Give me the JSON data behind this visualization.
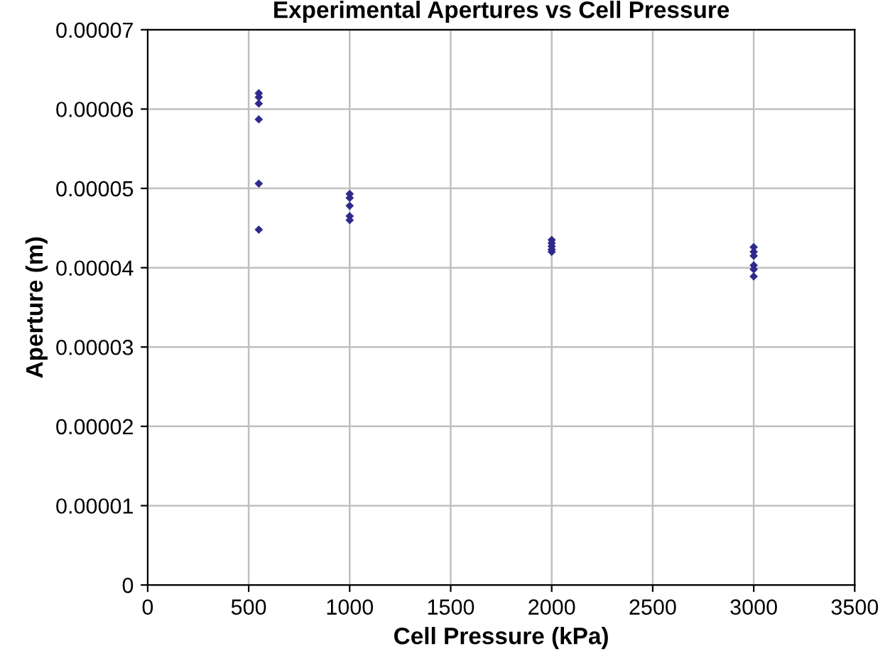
{
  "chart_data": {
    "type": "scatter",
    "title": "Experimental Apertures vs Cell Pressure",
    "xlabel": "Cell Pressure (kPa)",
    "ylabel": "Aperture (m)",
    "x": [
      550,
      550,
      550,
      550,
      550,
      550,
      1000,
      1000,
      1000,
      1000,
      1000,
      2000,
      2000,
      2000,
      2000,
      2000,
      3000,
      3000,
      3000,
      3000,
      3000,
      3000
    ],
    "series": [
      {
        "color": "#2e2a8c",
        "values": [
          6.2e-05,
          6.15e-05,
          6.07e-05,
          5.87e-05,
          5.06e-05,
          4.48e-05,
          4.93e-05,
          4.88e-05,
          4.78e-05,
          4.65e-05,
          4.6e-05,
          4.35e-05,
          4.31e-05,
          4.27e-05,
          4.23e-05,
          4.2e-05,
          4.26e-05,
          4.2e-05,
          4.15e-05,
          4.03e-05,
          3.98e-05,
          3.89e-05
        ]
      }
    ],
    "xlim": [
      0,
      3500
    ],
    "xticks": [
      0,
      500,
      1000,
      1500,
      2000,
      2500,
      3000,
      3500
    ],
    "ylim": [
      0,
      7e-05
    ],
    "yticks": [
      {
        "value": 0,
        "label": "0"
      },
      {
        "value": 1e-05,
        "label": "0.00001"
      },
      {
        "value": 2e-05,
        "label": "0.00002"
      },
      {
        "value": 3e-05,
        "label": "0.00003"
      },
      {
        "value": 4e-05,
        "label": "0.00004"
      },
      {
        "value": 5e-05,
        "label": "0.00005"
      },
      {
        "value": 6e-05,
        "label": "0.00006"
      },
      {
        "value": 7e-05,
        "label": "0.00007"
      }
    ],
    "grid": true,
    "marker": "diamond"
  }
}
